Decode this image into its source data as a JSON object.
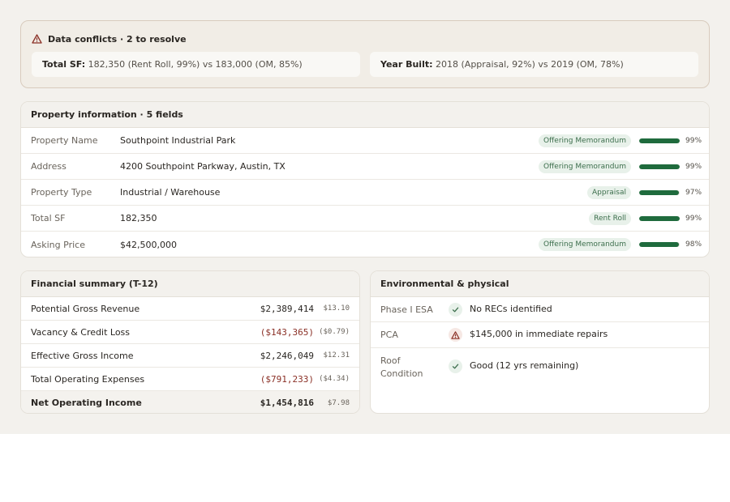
{
  "conflicts": {
    "title": "Data conflicts · 2 to resolve",
    "items": [
      {
        "label": "Total SF:",
        "text": "182,350 (Rent Roll, 99%) vs 183,000 (OM, 85%)"
      },
      {
        "label": "Year Built:",
        "text": "2018 (Appraisal, 92%) vs 2019 (OM, 78%)"
      }
    ],
    "icon": "warning-triangle-icon",
    "accent": "#8a2f25"
  },
  "property": {
    "title": "Property information · 5 fields",
    "rows": [
      {
        "label": "Property Name",
        "value": "Southpoint Industrial Park",
        "source": "Offering Memorandum",
        "confidence": 99,
        "confidence_label": "99%"
      },
      {
        "label": "Address",
        "value": "4200 Southpoint Parkway, Austin, TX",
        "source": "Offering Memorandum",
        "confidence": 99,
        "confidence_label": "99%"
      },
      {
        "label": "Property Type",
        "value": "Industrial / Warehouse",
        "source": "Appraisal",
        "confidence": 97,
        "confidence_label": "97%"
      },
      {
        "label": "Total SF",
        "value": "182,350",
        "source": "Rent Roll",
        "confidence": 99,
        "confidence_label": "99%"
      },
      {
        "label": "Asking Price",
        "value": "$42,500,000",
        "source": "Offering Memorandum",
        "confidence": 98,
        "confidence_label": "98%"
      }
    ],
    "bar_color": "#1f6b3d"
  },
  "financial": {
    "title": "Financial summary (T-12)",
    "rows": [
      {
        "label": "Potential Gross Revenue",
        "amount": "$2,389,414",
        "per_sf": "$13.10",
        "negative": false
      },
      {
        "label": "Vacancy & Credit Loss",
        "amount": "($143,365)",
        "per_sf": "($0.79)",
        "negative": true
      },
      {
        "label": "Effective Gross Income",
        "amount": "$2,246,049",
        "per_sf": "$12.31",
        "negative": false
      },
      {
        "label": "Total Operating Expenses",
        "amount": "($791,233)",
        "per_sf": "($4.34)",
        "negative": true
      },
      {
        "label": "Net Operating Income",
        "amount": "$1,454,816",
        "per_sf": "$7.98",
        "negative": false
      }
    ]
  },
  "environmental": {
    "title": "Environmental & physical",
    "rows": [
      {
        "label": "Phase I ESA",
        "value": "No RECs identified",
        "status": "ok",
        "icon": "check-icon"
      },
      {
        "label": "PCA",
        "value": "$145,000 in immediate repairs",
        "status": "warn",
        "icon": "warning-triangle-icon"
      },
      {
        "label": "Roof Condition",
        "value": "Good (12 yrs remaining)",
        "status": "ok",
        "icon": "check-icon"
      }
    ]
  }
}
